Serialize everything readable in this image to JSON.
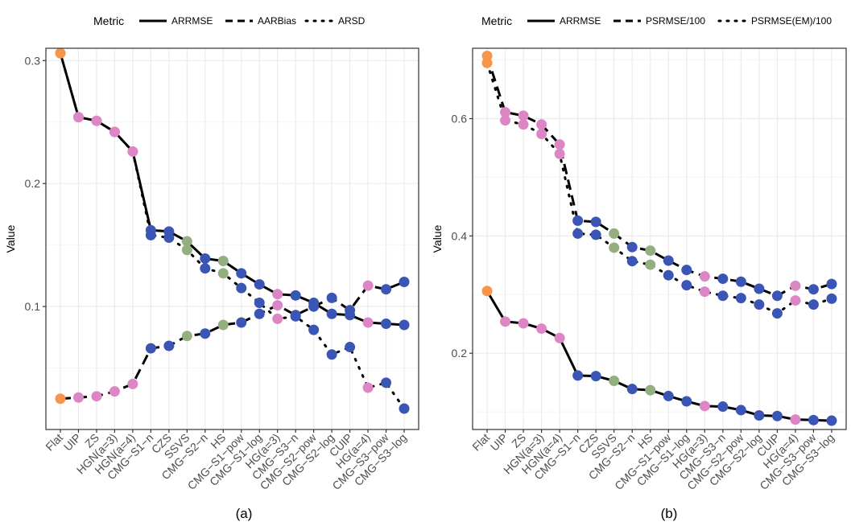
{
  "chart_data": [
    {
      "panel_id": "a",
      "type": "line",
      "caption": "(a)",
      "ylabel": "Value",
      "xlabel": "",
      "ylim": [
        0.0,
        0.31
      ],
      "yticks": [
        0.1,
        0.2,
        0.3
      ],
      "ytick_labels": [
        "0.1",
        "0.2",
        "0.3"
      ],
      "legend": {
        "title": "Metric",
        "position": "top"
      },
      "categories": [
        "Flat",
        "UIP",
        "ZS",
        "HGN(a=3)",
        "HGN(a=4)",
        "CMG−S1−n",
        "CZS",
        "SSVS",
        "CMG−S2−n",
        "HS",
        "CMG−S1−pow",
        "CMG−S1−log",
        "HG(a=3)",
        "CMG−S3−n",
        "CMG−S2−pow",
        "CMG−S2−log",
        "CUIP",
        "HG(a=4)",
        "CMG−S3−pow",
        "CMG−S3−log"
      ],
      "point_groups": [
        "flat",
        "pink",
        "pink",
        "pink",
        "pink",
        "blue",
        "blue",
        "green",
        "blue",
        "green",
        "blue",
        "blue",
        "pink",
        "blue",
        "blue",
        "blue",
        "blue",
        "pink",
        "blue",
        "blue"
      ],
      "series": [
        {
          "name": "ARRMSE",
          "dash": "solid",
          "values": [
            0.306,
            0.254,
            0.251,
            0.242,
            0.226,
            0.162,
            0.161,
            0.153,
            0.139,
            0.137,
            0.127,
            0.118,
            0.11,
            0.109,
            0.103,
            0.094,
            0.093,
            0.087,
            0.086,
            0.085
          ]
        },
        {
          "name": "AARBias",
          "dash": "dashed",
          "values": [
            0.025,
            0.026,
            0.027,
            0.031,
            0.037,
            0.066,
            0.068,
            0.076,
            0.078,
            0.085,
            0.087,
            0.094,
            0.101,
            0.093,
            0.1,
            0.107,
            0.097,
            0.117,
            0.114,
            0.12
          ]
        },
        {
          "name": "ARSD",
          "dash": "dotted",
          "values": [
            0.306,
            0.254,
            0.251,
            0.242,
            0.226,
            0.158,
            0.156,
            0.146,
            0.131,
            0.127,
            0.115,
            0.103,
            0.09,
            0.092,
            0.081,
            0.061,
            0.067,
            0.034,
            0.038,
            0.017
          ]
        }
      ]
    },
    {
      "panel_id": "b",
      "type": "line",
      "caption": "(b)",
      "ylabel": "Value",
      "xlabel": "",
      "ylim": [
        0.07,
        0.72
      ],
      "yticks": [
        0.2,
        0.4,
        0.6
      ],
      "ytick_labels": [
        "0.2",
        "0.4",
        "0.6"
      ],
      "legend": {
        "title": "Metric",
        "position": "top"
      },
      "categories": [
        "Flat",
        "UIP",
        "ZS",
        "HGN(a=3)",
        "HGN(a=4)",
        "CMG−S1−n",
        "CZS",
        "SSVS",
        "CMG−S2−n",
        "HS",
        "CMG−S1−pow",
        "CMG−S1−log",
        "HG(a=3)",
        "CMG−S3−n",
        "CMG−S2−pow",
        "CMG−S2−log",
        "CUIP",
        "HG(a=4)",
        "CMG−S3−pow",
        "CMG−S3−log"
      ],
      "point_groups": [
        "flat",
        "pink",
        "pink",
        "pink",
        "pink",
        "blue",
        "blue",
        "green",
        "blue",
        "green",
        "blue",
        "blue",
        "pink",
        "blue",
        "blue",
        "blue",
        "blue",
        "pink",
        "blue",
        "blue"
      ],
      "series": [
        {
          "name": "ARRMSE",
          "dash": "solid",
          "values": [
            0.306,
            0.254,
            0.251,
            0.242,
            0.226,
            0.162,
            0.161,
            0.153,
            0.139,
            0.137,
            0.127,
            0.118,
            0.11,
            0.109,
            0.103,
            0.094,
            0.093,
            0.087,
            0.086,
            0.085
          ]
        },
        {
          "name": "PSRMSE/100",
          "dash": "dashed",
          "values": [
            0.707,
            0.611,
            0.605,
            0.59,
            0.556,
            0.426,
            0.424,
            0.404,
            0.381,
            0.375,
            0.358,
            0.342,
            0.331,
            0.327,
            0.322,
            0.31,
            0.298,
            0.315,
            0.309,
            0.318
          ]
        },
        {
          "name": "PSRMSE(EM)/100",
          "dash": "dotted",
          "values": [
            0.695,
            0.597,
            0.59,
            0.574,
            0.54,
            0.404,
            0.402,
            0.38,
            0.357,
            0.351,
            0.333,
            0.316,
            0.305,
            0.298,
            0.294,
            0.283,
            0.268,
            0.29,
            0.283,
            0.293
          ]
        }
      ]
    }
  ],
  "colors": {
    "flat": "#F8954A",
    "pink": "#DD86C5",
    "blue": "#3B55B4",
    "green": "#93AE7F",
    "line": "#000000",
    "grid_major": "#EBEBEB",
    "grid_minor": "#F5F5F5",
    "panel_border": "#333333"
  }
}
